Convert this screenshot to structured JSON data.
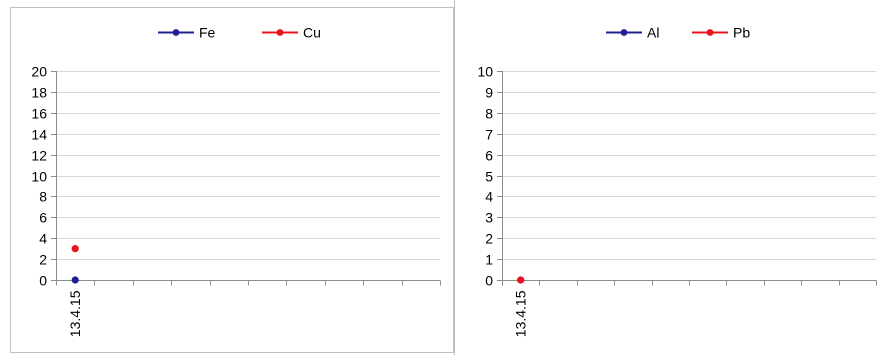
{
  "chart_data": [
    {
      "type": "line",
      "categories": [
        "13.4.15"
      ],
      "series": [
        {
          "name": "Fe",
          "color": "#1f1f8f",
          "values": [
            0
          ]
        },
        {
          "name": "Cu",
          "color": "#e8141b",
          "values": [
            3
          ]
        }
      ],
      "ylim": [
        0,
        20
      ],
      "yticks": [
        0,
        2,
        4,
        6,
        8,
        10,
        12,
        14,
        16,
        18,
        20
      ],
      "grid": true,
      "legend": "top"
    },
    {
      "type": "line",
      "categories": [
        "13.4.15"
      ],
      "series": [
        {
          "name": "Al",
          "color": "#1f1f8f",
          "values": [
            0
          ]
        },
        {
          "name": "Pb",
          "color": "#e8141b",
          "values": [
            0
          ]
        }
      ],
      "ylim": [
        0,
        10
      ],
      "yticks": [
        0,
        1,
        2,
        3,
        4,
        5,
        6,
        7,
        8,
        9,
        10
      ],
      "grid": true,
      "legend": "top"
    }
  ]
}
